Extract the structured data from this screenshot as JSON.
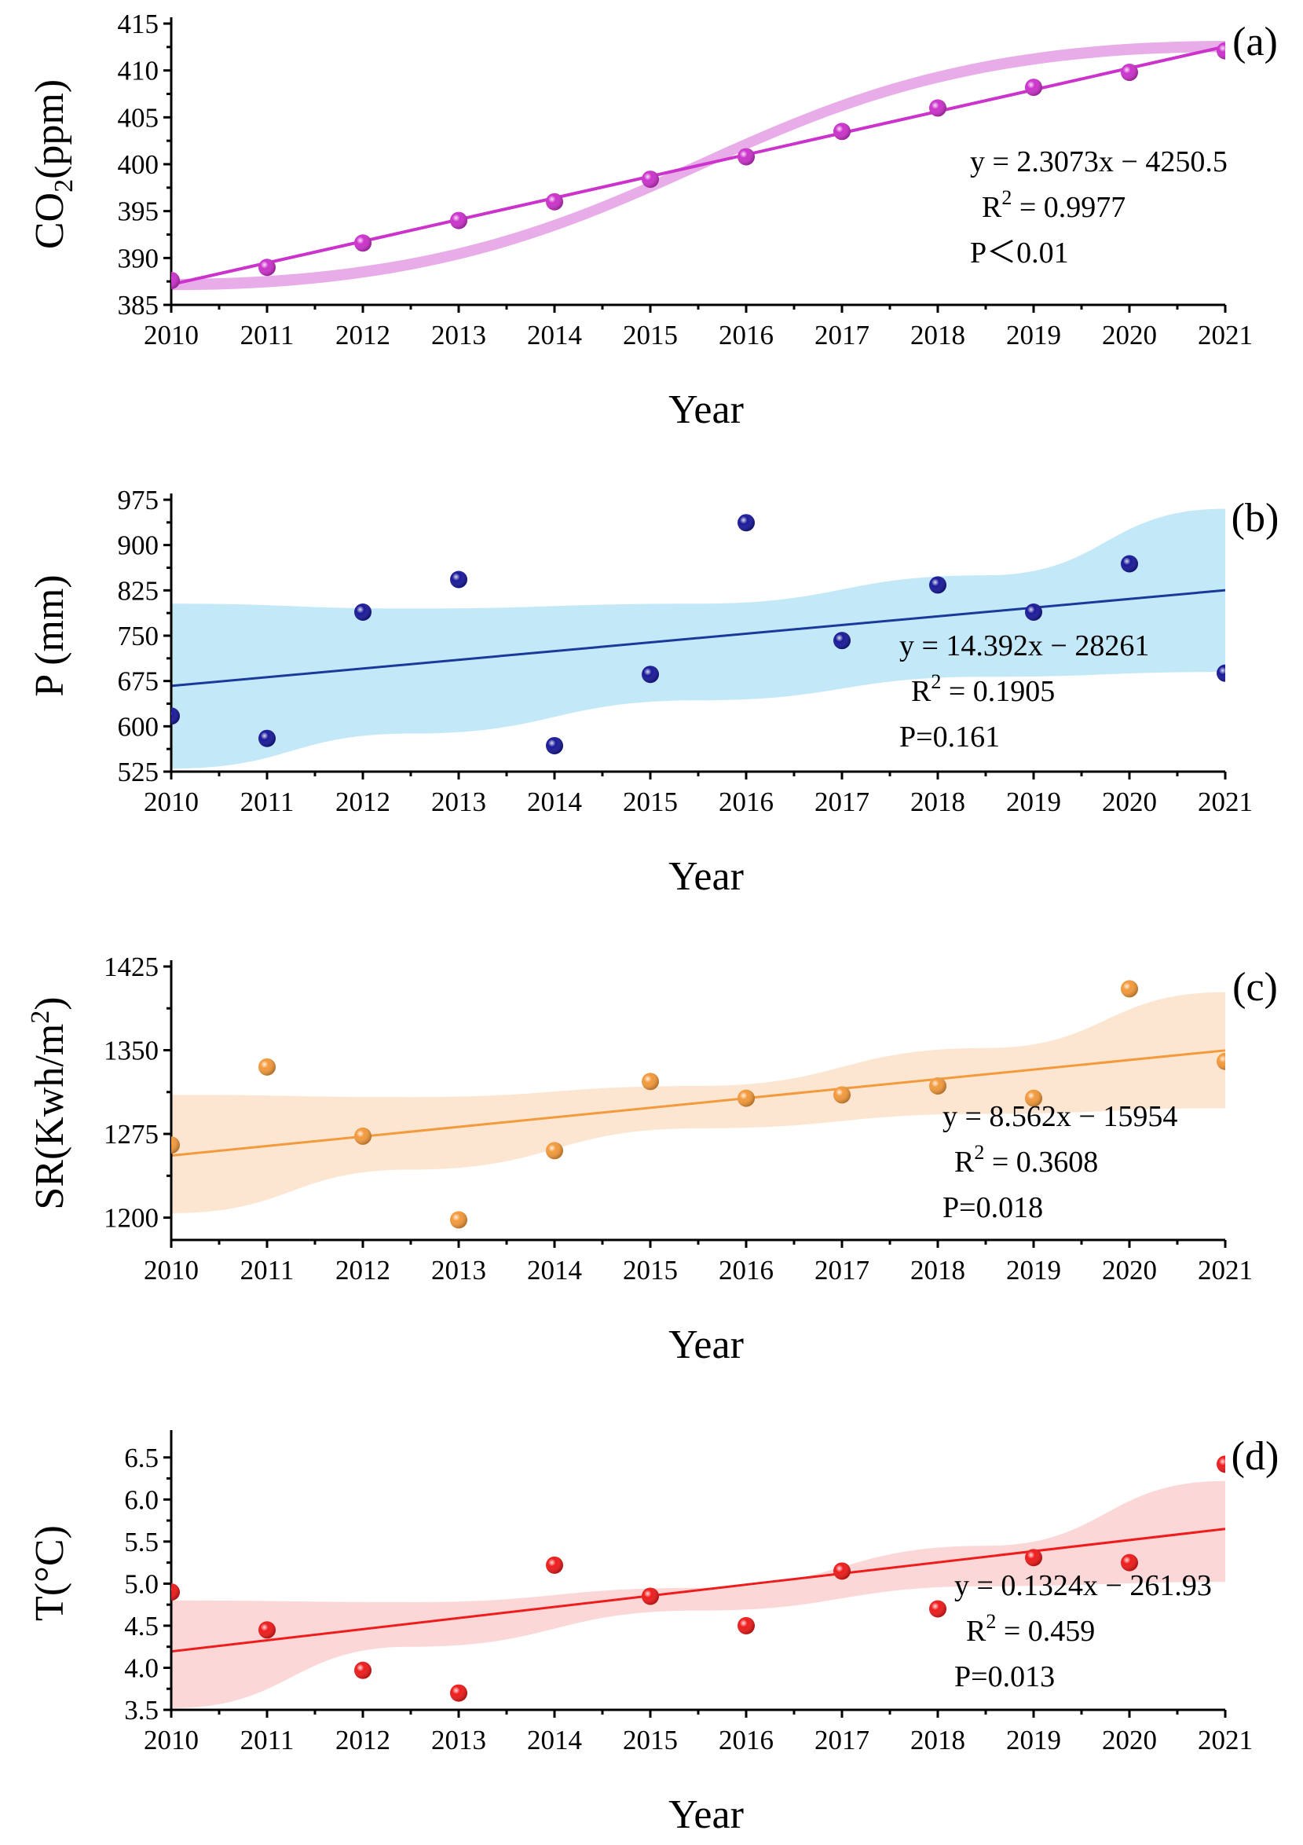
{
  "chart_data": [
    {
      "type": "scatter",
      "panel_label": "(a)",
      "title": "",
      "xlabel": "Year",
      "ylabel": {
        "main": "CO",
        "sub": "2",
        "rest": "(ppm)"
      },
      "x": [
        2010,
        2011,
        2012,
        2013,
        2014,
        2015,
        2016,
        2017,
        2018,
        2019,
        2020,
        2021
      ],
      "y": [
        387.6,
        389.0,
        391.6,
        394.0,
        396.0,
        398.4,
        400.8,
        403.5,
        406.0,
        408.2,
        409.8,
        412.1
      ],
      "xlim": [
        2010,
        2021
      ],
      "ylim": [
        385,
        415
      ],
      "yticks": [
        385,
        390,
        395,
        400,
        405,
        410,
        415
      ],
      "xticks": [
        2010,
        2011,
        2012,
        2013,
        2014,
        2015,
        2016,
        2017,
        2018,
        2019,
        2020,
        2021
      ],
      "fit": {
        "slope": 2.3073,
        "intercept": -4250.5
      },
      "ci_band": {
        "at_start": 0.6,
        "at_end": 0.6
      },
      "colors": {
        "point": "#cc33cc",
        "line": "#cc33cc",
        "band": "#e6a3e6"
      },
      "annotation": {
        "eq": "y = 2.3073x − 4250.5",
        "r2_label": "R",
        "r2_sup": "2",
        "r2_value": " = 0.9977",
        "p": "P＜0.01"
      }
    },
    {
      "type": "scatter",
      "panel_label": "(b)",
      "title": "",
      "xlabel": "Year",
      "ylabel": {
        "main": "P (mm)",
        "sub": "",
        "rest": ""
      },
      "x": [
        2010,
        2011,
        2012,
        2013,
        2014,
        2015,
        2016,
        2017,
        2018,
        2019,
        2020,
        2021
      ],
      "y": [
        617,
        580,
        789,
        843,
        568,
        686,
        937,
        742,
        834,
        789,
        869,
        688
      ],
      "xlim": [
        2010,
        2021
      ],
      "ylim": [
        525,
        975
      ],
      "yticks": [
        525,
        600,
        675,
        750,
        825,
        900,
        975
      ],
      "xticks": [
        2010,
        2011,
        2012,
        2013,
        2014,
        2015,
        2016,
        2017,
        2018,
        2019,
        2020,
        2021
      ],
      "fit": {
        "slope": 14.392,
        "intercept": -28261
      },
      "ci_band": {
        "lower": [
          530,
          588,
          643,
          682,
          690
        ],
        "upper": [
          803,
          795,
          803,
          850,
          960
        ],
        "x": [
          2010,
          2012.5,
          2015.5,
          2018.5,
          2021
        ]
      },
      "colors": {
        "point": "#1a1a9a",
        "line": "#1a3a9a",
        "band": "#bde6f7"
      },
      "annotation": {
        "eq": "y = 14.392x − 28261",
        "r2_label": "R",
        "r2_sup": "2",
        "r2_value": " = 0.1905",
        "p": "P=0.161"
      }
    },
    {
      "type": "scatter",
      "panel_label": "(c)",
      "title": "",
      "xlabel": "Year",
      "ylabel": {
        "main": "SR(Kwh/m",
        "sup": "2",
        "rest": ")"
      },
      "x": [
        2010,
        2011,
        2012,
        2013,
        2014,
        2015,
        2016,
        2017,
        2018,
        2019,
        2020,
        2021
      ],
      "y": [
        1265,
        1335,
        1273,
        1198,
        1260,
        1322,
        1307,
        1310,
        1318,
        1307,
        1405,
        1340
      ],
      "xlim": [
        2010,
        2021
      ],
      "ylim": [
        1180,
        1425
      ],
      "yticks": [
        1200,
        1275,
        1350,
        1425
      ],
      "xticks": [
        2010,
        2011,
        2012,
        2013,
        2014,
        2015,
        2016,
        2017,
        2018,
        2019,
        2020,
        2021
      ],
      "fit": {
        "slope": 8.562,
        "intercept": -15954
      },
      "ci_band": {
        "lower": [
          1204,
          1243,
          1280,
          1293,
          1298
        ],
        "upper": [
          1310,
          1308,
          1318,
          1352,
          1402
        ],
        "x": [
          2010,
          2012.5,
          2015.5,
          2018.5,
          2021
        ]
      },
      "colors": {
        "point": "#f39a3c",
        "line": "#f39a3c",
        "band": "#fde3cc"
      },
      "annotation": {
        "eq": "y = 8.562x − 15954",
        "r2_label": "R",
        "r2_sup": "2",
        "r2_value": " = 0.3608",
        "p": "P=0.018"
      }
    },
    {
      "type": "scatter",
      "panel_label": "(d)",
      "title": "",
      "xlabel": "Year",
      "ylabel": {
        "main": "T(°C)",
        "sub": "",
        "rest": ""
      },
      "x": [
        2010,
        2011,
        2012,
        2013,
        2014,
        2015,
        2016,
        2017,
        2018,
        2019,
        2020,
        2021
      ],
      "y": [
        4.9,
        4.45,
        3.97,
        3.7,
        5.22,
        4.85,
        4.5,
        5.15,
        4.7,
        5.31,
        5.25,
        6.42
      ],
      "xlim": [
        2010,
        2021
      ],
      "ylim": [
        3.5,
        6.75
      ],
      "yticks": [
        3.5,
        4.0,
        4.5,
        5.0,
        5.5,
        6.0,
        6.5
      ],
      "xticks": [
        2010,
        2011,
        2012,
        2013,
        2014,
        2015,
        2016,
        2017,
        2018,
        2019,
        2020,
        2021
      ],
      "fit": {
        "slope": 0.1324,
        "intercept": -261.93
      },
      "ci_band": {
        "lower": [
          3.52,
          4.25,
          4.68,
          4.97,
          5.02
        ],
        "upper": [
          4.8,
          4.78,
          4.95,
          5.45,
          6.22
        ],
        "x": [
          2010,
          2012.5,
          2015.5,
          2018.5,
          2021
        ]
      },
      "colors": {
        "point": "#ee1c1c",
        "line": "#ee1c1c",
        "band": "#fcd3d3"
      },
      "annotation": {
        "eq": "y = 0.1324x − 261.93",
        "r2_label": "R",
        "r2_sup": "2",
        "r2_value": " = 0.459",
        "p": "P=0.013"
      }
    }
  ]
}
